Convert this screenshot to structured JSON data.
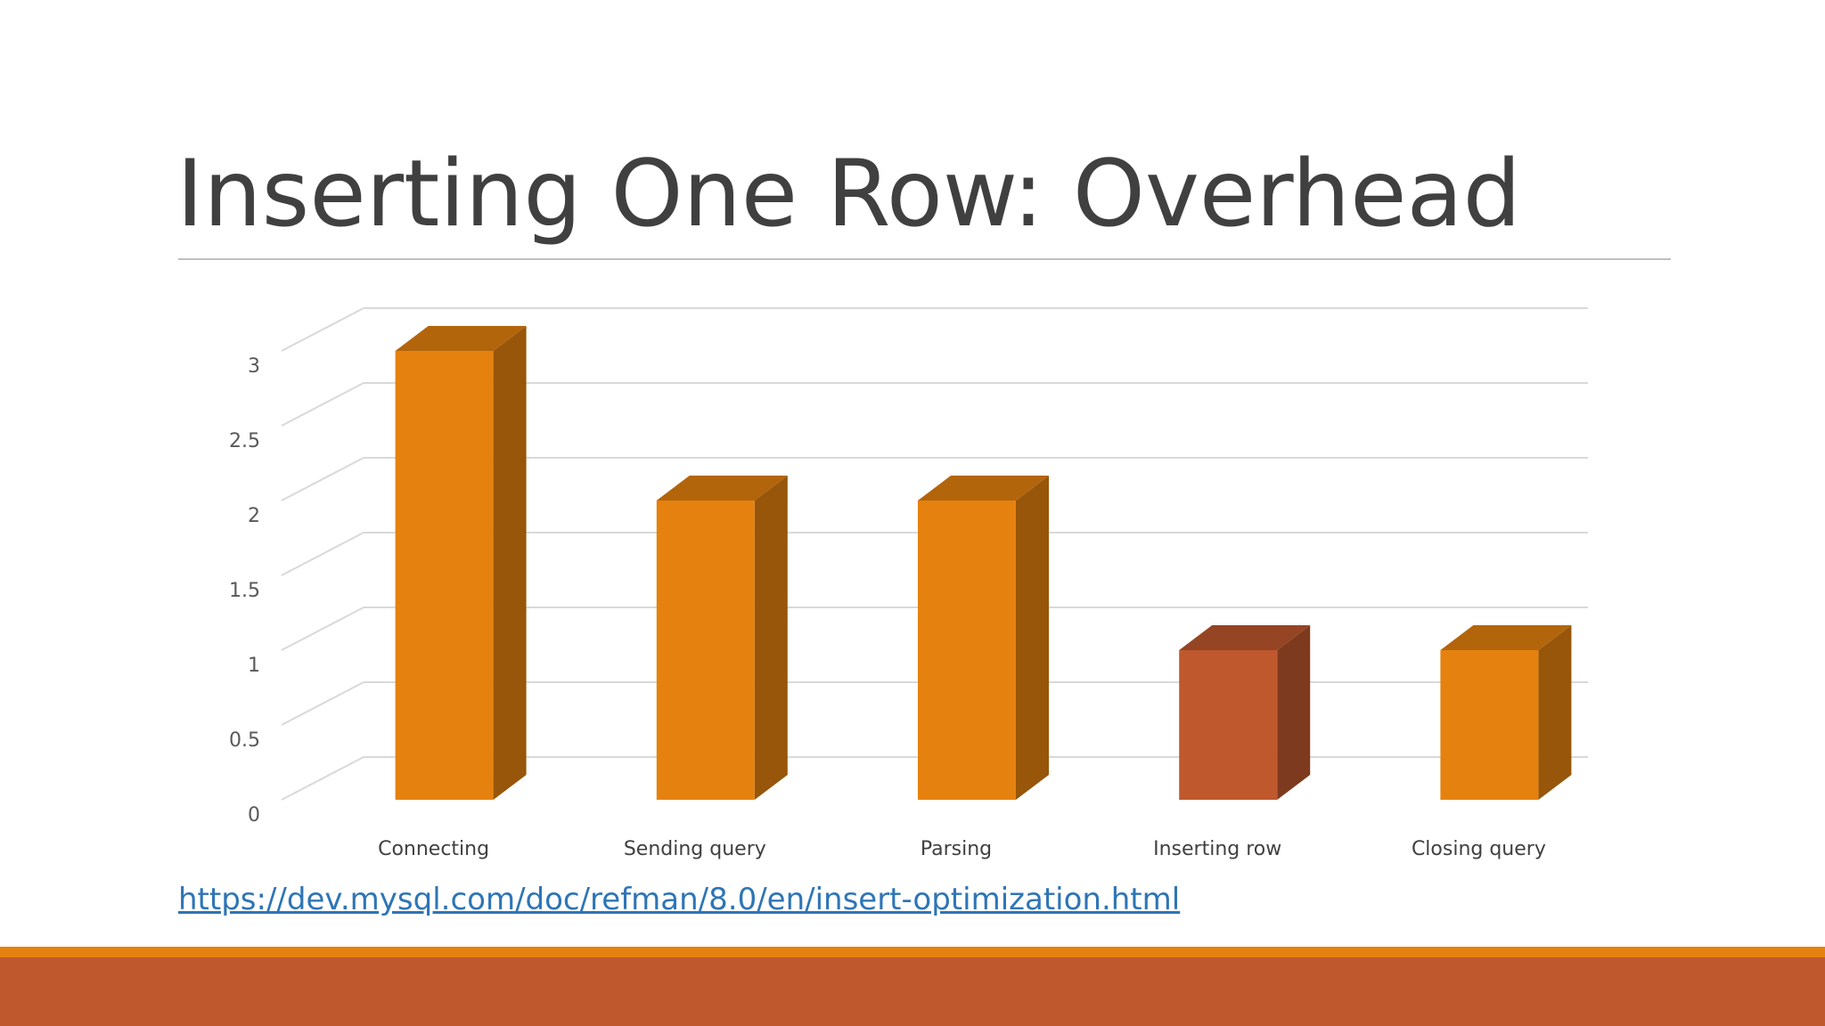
{
  "slide": {
    "title": "Inserting One Row: Overhead",
    "link": "https://dev.mysql.com/doc/refman/8.0/en/insert-optimization.html"
  },
  "colors": {
    "bar": "#e5820f",
    "bar_highlight": "#bf582d",
    "grid": "#d9d9d9",
    "footer_stripe": "#e5820f",
    "footer_band": "#bf582d",
    "link": "#2e75b6"
  },
  "chart_data": {
    "type": "bar",
    "style": "3d-column",
    "categories": [
      "Connecting",
      "Sending query",
      "Parsing",
      "Inserting row",
      "Closing query"
    ],
    "values": [
      3,
      2,
      2,
      1,
      1
    ],
    "highlight_index": 3,
    "title": "",
    "xlabel": "",
    "ylabel": "",
    "ylim": [
      0,
      3.3
    ],
    "yticks": [
      "0",
      "0.5",
      "1",
      "1.5",
      "2",
      "2.5",
      "3"
    ],
    "grid": true,
    "legend": "none"
  }
}
